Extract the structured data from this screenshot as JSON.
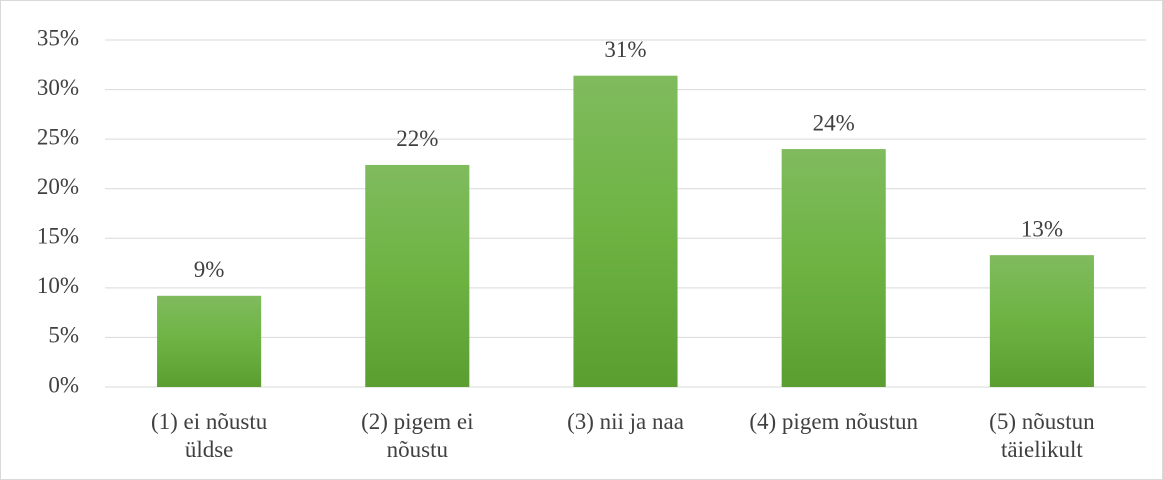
{
  "chart_data": {
    "type": "bar",
    "categories": [
      "(1) ei nõustu üldse",
      "(2) pigem ei nõustu",
      "(3) nii ja naa",
      "(4) pigem nõustun",
      "(5) nõustun täielikult"
    ],
    "values": [
      9.2,
      22.4,
      31.4,
      24.0,
      13.3
    ],
    "value_labels": [
      "9%",
      "22%",
      "31%",
      "24%",
      "13%"
    ],
    "color": "#6aaf45",
    "ylim": [
      0,
      35
    ],
    "yticks": [
      {
        "value": 0,
        "label": "0%"
      },
      {
        "value": 5,
        "label": "5%"
      },
      {
        "value": 10,
        "label": "10%"
      },
      {
        "value": 15,
        "label": "15%"
      },
      {
        "value": 20,
        "label": "20%"
      },
      {
        "value": 25,
        "label": "25%"
      },
      {
        "value": 30,
        "label": "30%"
      },
      {
        "value": 35,
        "label": "35%"
      }
    ],
    "grid": true
  }
}
